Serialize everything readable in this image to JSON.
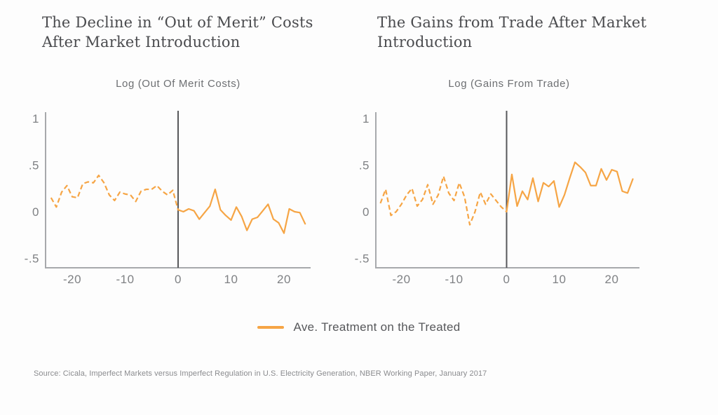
{
  "legend": {
    "label": "Ave. Treatment on the Treated",
    "color": "#f6a545"
  },
  "source": "Source: Cicala, Imperfect Markets versus Imperfect Regulation in U.S. Electricity Generation, NBER Working Paper, January 2017",
  "colors": {
    "line": "#f6a545",
    "axis": "#a7a9ac",
    "event_line": "#57585b",
    "tick_label": "#7f8184",
    "title_text": "#4a4b4e"
  },
  "chart_data": [
    {
      "type": "line",
      "title": "The Decline in “Out of Merit” Costs After Market Introduction",
      "axis_title": "Log (Out Of Merit Costs)",
      "xlabel": "",
      "ylabel": "",
      "xlim": [
        -25,
        25
      ],
      "ylim": [
        -0.6,
        1.05
      ],
      "event_line_x": 0,
      "grid": false,
      "style_note": "segmented/dashed line before x=0, solid after; vertical event line at x=0",
      "x_ticks": [
        {
          "v": -20,
          "label": "-20"
        },
        {
          "v": -10,
          "label": "-10"
        },
        {
          "v": 0,
          "label": "0"
        },
        {
          "v": 10,
          "label": "10"
        },
        {
          "v": 20,
          "label": "20"
        }
      ],
      "y_ticks": [
        {
          "v": 1,
          "label": "1"
        },
        {
          "v": 0.5,
          "label": ".5"
        },
        {
          "v": 0,
          "label": "0"
        },
        {
          "v": -0.5,
          "label": "-.5"
        }
      ],
      "series": [
        {
          "name": "Ave. Treatment on the Treated",
          "x": [
            -24,
            -23,
            -22,
            -21,
            -20,
            -19,
            -18,
            -17,
            -16,
            -15,
            -14,
            -13,
            -12,
            -11,
            -10,
            -9,
            -8,
            -7,
            -6,
            -5,
            -4,
            -3,
            -2,
            -1,
            0,
            1,
            2,
            3,
            4,
            5,
            6,
            7,
            8,
            9,
            10,
            11,
            12,
            13,
            14,
            15,
            16,
            17,
            18,
            19,
            20,
            21,
            22,
            23,
            24
          ],
          "values": [
            0.15,
            0.05,
            0.21,
            0.28,
            0.16,
            0.15,
            0.3,
            0.32,
            0.31,
            0.39,
            0.31,
            0.18,
            0.12,
            0.21,
            0.19,
            0.18,
            0.11,
            0.22,
            0.24,
            0.24,
            0.28,
            0.22,
            0.18,
            0.23,
            0.02,
            0.0,
            0.03,
            0.01,
            -0.08,
            -0.01,
            0.06,
            0.24,
            0.02,
            -0.04,
            -0.09,
            0.05,
            -0.05,
            -0.2,
            -0.08,
            -0.06,
            0.01,
            0.08,
            -0.08,
            -0.12,
            -0.23,
            0.03,
            0.0,
            -0.01,
            -0.13
          ]
        }
      ]
    },
    {
      "type": "line",
      "title": "The Gains from Trade After Market Introduction",
      "axis_title": "Log (Gains From Trade)",
      "xlabel": "",
      "ylabel": "",
      "xlim": [
        -25,
        25
      ],
      "ylim": [
        -0.6,
        1.05
      ],
      "event_line_x": 0,
      "grid": false,
      "style_note": "segmented/dashed line before x=0, solid after; vertical event line at x=0",
      "x_ticks": [
        {
          "v": -20,
          "label": "-20"
        },
        {
          "v": -10,
          "label": "-10"
        },
        {
          "v": 0,
          "label": "0"
        },
        {
          "v": 10,
          "label": "10"
        },
        {
          "v": 20,
          "label": "20"
        }
      ],
      "y_ticks": [
        {
          "v": 1,
          "label": "1"
        },
        {
          "v": 0.5,
          "label": ".5"
        },
        {
          "v": 0,
          "label": "0"
        },
        {
          "v": -0.5,
          "label": "-.5"
        }
      ],
      "series": [
        {
          "name": "Ave. Treatment on the Treated",
          "x": [
            -24,
            -23,
            -22,
            -21,
            -20,
            -19,
            -18,
            -17,
            -16,
            -15,
            -14,
            -13,
            -12,
            -11,
            -10,
            -9,
            -8,
            -7,
            -6,
            -5,
            -4,
            -3,
            -2,
            -1,
            0,
            1,
            2,
            3,
            4,
            5,
            6,
            7,
            8,
            9,
            10,
            11,
            12,
            13,
            14,
            15,
            16,
            17,
            18,
            19,
            20,
            21,
            22,
            23,
            24
          ],
          "values": [
            0.09,
            0.24,
            -0.04,
            0.0,
            0.08,
            0.18,
            0.25,
            0.06,
            0.13,
            0.29,
            0.08,
            0.18,
            0.38,
            0.2,
            0.12,
            0.31,
            0.16,
            -0.14,
            0.0,
            0.21,
            0.08,
            0.19,
            0.12,
            0.05,
            0.0,
            0.4,
            0.06,
            0.22,
            0.13,
            0.36,
            0.11,
            0.31,
            0.27,
            0.33,
            0.05,
            0.18,
            0.36,
            0.53,
            0.48,
            0.42,
            0.28,
            0.28,
            0.46,
            0.34,
            0.45,
            0.43,
            0.22,
            0.2,
            0.35
          ]
        }
      ]
    }
  ]
}
